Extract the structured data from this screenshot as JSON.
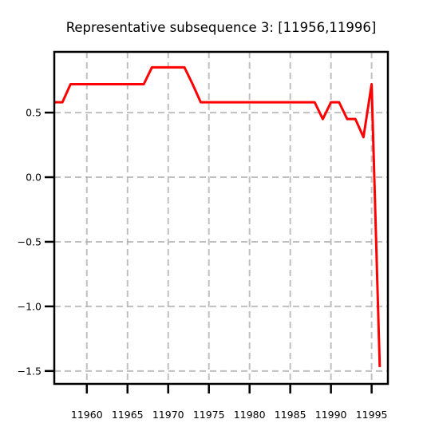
{
  "chart_data": {
    "type": "line",
    "title": "Representative subsequence 3: [11956,11996]",
    "xlabel": "",
    "ylabel": "",
    "xlim": [
      11956,
      11997
    ],
    "ylim": [
      -1.6,
      0.97
    ],
    "x_ticks": [
      11960,
      11965,
      11970,
      11975,
      11980,
      11985,
      11990,
      11995
    ],
    "x_tick_labels": [
      "11960",
      "11965",
      "11970",
      "11975",
      "11980",
      "11985",
      "11990",
      "11995"
    ],
    "y_ticks": [
      -1.5,
      -1.0,
      -0.5,
      0.0,
      0.5
    ],
    "y_tick_labels": [
      "−1.5",
      "−1.0",
      "−0.5",
      "0.0",
      "0.5"
    ],
    "grid": true,
    "series": [
      {
        "color": "#ff0000",
        "x": [
          11956,
          11957,
          11958,
          11959,
          11960,
          11961,
          11962,
          11963,
          11964,
          11965,
          11966,
          11967,
          11968,
          11969,
          11970,
          11971,
          11972,
          11973,
          11974,
          11975,
          11976,
          11977,
          11978,
          11979,
          11980,
          11981,
          11982,
          11983,
          11984,
          11985,
          11986,
          11987,
          11988,
          11989,
          11990,
          11991,
          11992,
          11993,
          11994,
          11995,
          11996
        ],
        "y": [
          0.58,
          0.58,
          0.72,
          0.72,
          0.72,
          0.72,
          0.72,
          0.72,
          0.72,
          0.72,
          0.72,
          0.72,
          0.85,
          0.85,
          0.85,
          0.85,
          0.85,
          0.72,
          0.58,
          0.58,
          0.58,
          0.58,
          0.58,
          0.58,
          0.58,
          0.58,
          0.58,
          0.58,
          0.58,
          0.58,
          0.58,
          0.58,
          0.58,
          0.45,
          0.58,
          0.58,
          0.45,
          0.45,
          0.31,
          0.72,
          -1.47
        ]
      }
    ]
  }
}
